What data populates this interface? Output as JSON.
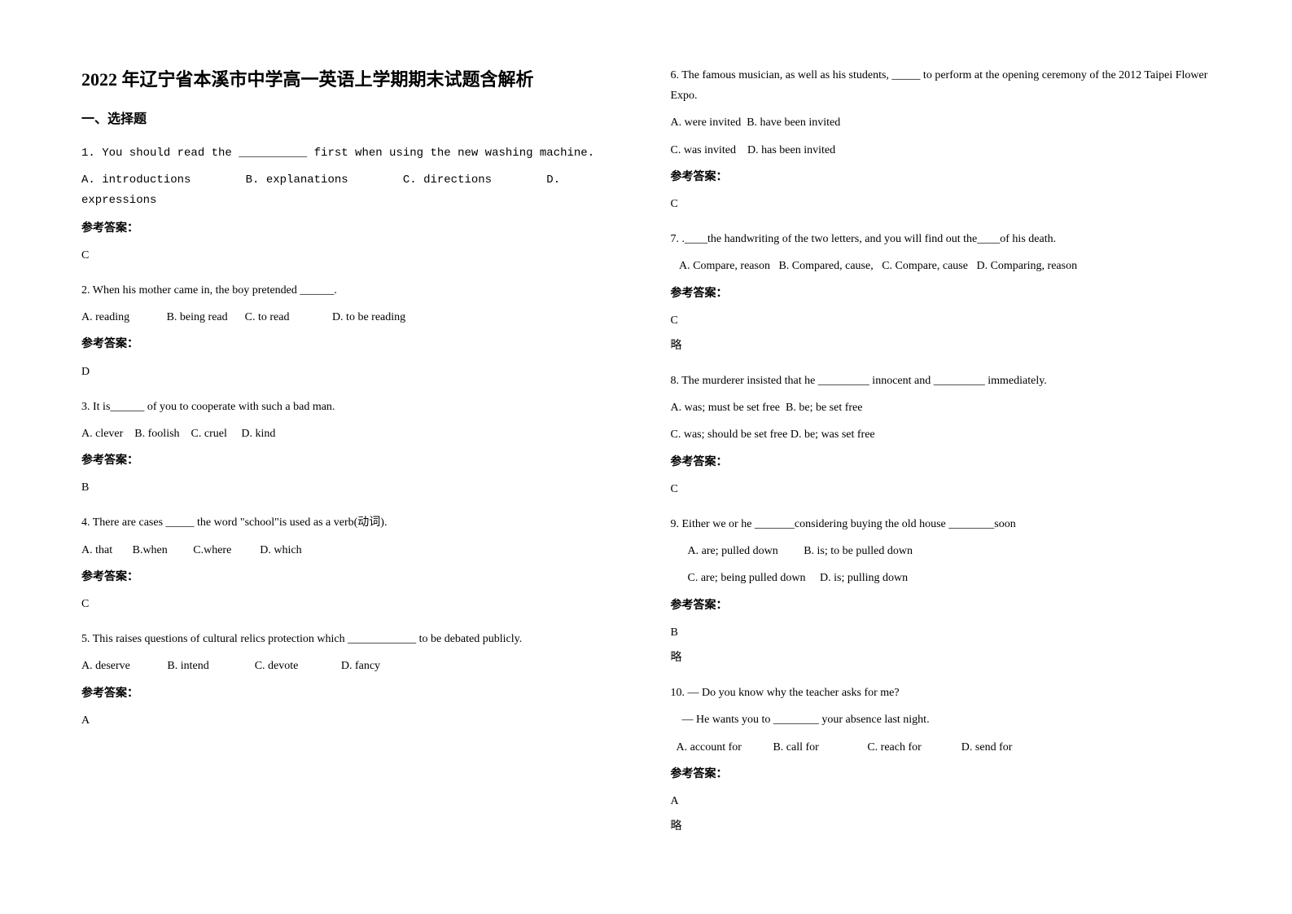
{
  "title": "2022 年辽宁省本溪市中学高一英语上学期期末试题含解析",
  "sectionHeader": "一、选择题",
  "leftQuestions": [
    {
      "text": "1. You should read the __________ first when using the new washing machine.",
      "optionsLines": [
        "A. introductions        B. explanations        C. directions        D. expressions"
      ],
      "answerLabel": "参考答案：",
      "answer": "C",
      "textClass": "mono"
    },
    {
      "text": "2. When his mother came in, the boy pretended ______.",
      "optionsLines": [
        "A. reading             B. being read      C. to read               D. to be reading"
      ],
      "answerLabel": "参考答案：",
      "answer": "D"
    },
    {
      "text": "3. It is______ of you to cooperate with such a bad man.",
      "optionsLines": [
        "A. clever    B. foolish    C. cruel     D. kind"
      ],
      "answerLabel": "参考答案：",
      "answer": "B"
    },
    {
      "text": "4. There are cases _____ the word \"school\"is used as a verb(动词).",
      "optionsLines": [
        "A. that       B.when         C.where          D. which"
      ],
      "answerLabel": "参考答案：",
      "answer": "C"
    },
    {
      "text": "5. This raises questions of cultural relics protection which ____________ to be debated publicly.",
      "optionsLines": [
        "A. deserve             B. intend                C. devote               D. fancy"
      ],
      "answerLabel": "参考答案：",
      "answer": "A"
    }
  ],
  "rightQuestions": [
    {
      "text": "6. The famous musician, as well as his students, _____ to perform at the opening ceremony of the 2012 Taipei Flower Expo.",
      "optionsLines": [
        "A. were invited  B. have been invited",
        "C. was invited    D. has been invited"
      ],
      "answerLabel": "参考答案：",
      "answer": "C"
    },
    {
      "text": "7. .____the handwriting of the two letters, and you will find out the____of his death.",
      "optionsLines": [
        "   A. Compare, reason   B. Compared, cause,   C. Compare, cause   D. Comparing, reason"
      ],
      "answerLabel": "参考答案：",
      "answer": "C",
      "note": "略"
    },
    {
      "text": "8. The murderer insisted that he _________ innocent and _________ immediately.",
      "optionsLines": [
        "A. was; must be set free  B. be; be set free",
        "C. was; should be set free D. be; was set free"
      ],
      "answerLabel": "参考答案：",
      "answer": "C"
    },
    {
      "text": "9. Either we or he _______considering buying the old house ________soon",
      "optionsLines": [
        "      A. are; pulled down         B. is; to be pulled down",
        "      C. are; being pulled down     D. is; pulling down"
      ],
      "answerLabel": "参考答案：",
      "answer": "B",
      "note": "略"
    },
    {
      "text": "10. — Do you know why the teacher asks for me?",
      "text2": "    — He wants you to ________ your absence last night.",
      "optionsLines": [
        "  A. account for           B. call for                 C. reach for              D. send for"
      ],
      "answerLabel": "参考答案：",
      "answer": "A",
      "note": "略"
    }
  ]
}
